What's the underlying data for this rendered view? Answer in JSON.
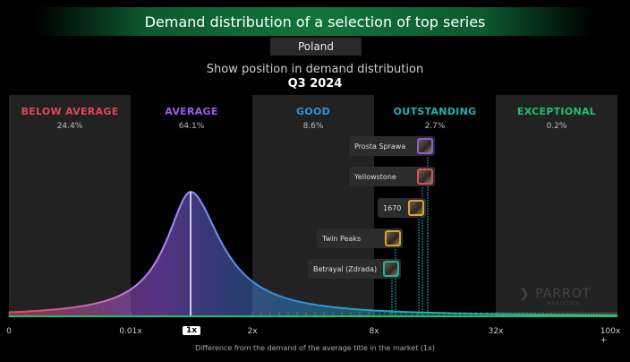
{
  "header": {
    "title": "Demand distribution of a selection of top series",
    "country": "Poland",
    "subtitle": "Show position in demand distribution",
    "period": "Q3 2024"
  },
  "colors": {
    "below_average": "#e0455e",
    "average": "#9a5bf0",
    "good": "#2f8fe0",
    "outstanding": "#19b3b8",
    "exceptional": "#1fbf73"
  },
  "chart_data": {
    "type": "area",
    "title": "",
    "xlabel": "Difference from the demand of the average title in the market (1x)",
    "ylabel": "",
    "x_scale": "log",
    "x_tick_labels": [
      "0",
      "0.01x",
      "1x",
      "2x",
      "8x",
      "32x",
      "100x +"
    ],
    "curve_peak": "1x",
    "bands": [
      {
        "name": "BELOW AVERAGE",
        "share": "24.4%",
        "from": "0",
        "to": "0.01x"
      },
      {
        "name": "AVERAGE",
        "share": "64.1%",
        "from": "0.01x",
        "to": "2x"
      },
      {
        "name": "GOOD",
        "share": "8.6%",
        "from": "2x",
        "to": "8x"
      },
      {
        "name": "OUTSTANDING",
        "share": "2.7%",
        "from": "8x",
        "to": "32x"
      },
      {
        "name": "EXCEPTIONAL",
        "share": "0.2%",
        "from": "32x",
        "to": "100x +"
      }
    ],
    "titles": [
      {
        "name": "Prosta Sprawa",
        "accent": "#8b5fd6"
      },
      {
        "name": "Yellowstone",
        "accent": "#d9534f"
      },
      {
        "name": "1670",
        "accent": "#d4a72c"
      },
      {
        "name": "Twin Peaks",
        "accent": "#d4a72c"
      },
      {
        "name": "Betrayal (Zdrada)",
        "accent": "#19b3a0"
      }
    ]
  },
  "logo": {
    "name": "PARROT",
    "sub": "ANALYTICS"
  }
}
